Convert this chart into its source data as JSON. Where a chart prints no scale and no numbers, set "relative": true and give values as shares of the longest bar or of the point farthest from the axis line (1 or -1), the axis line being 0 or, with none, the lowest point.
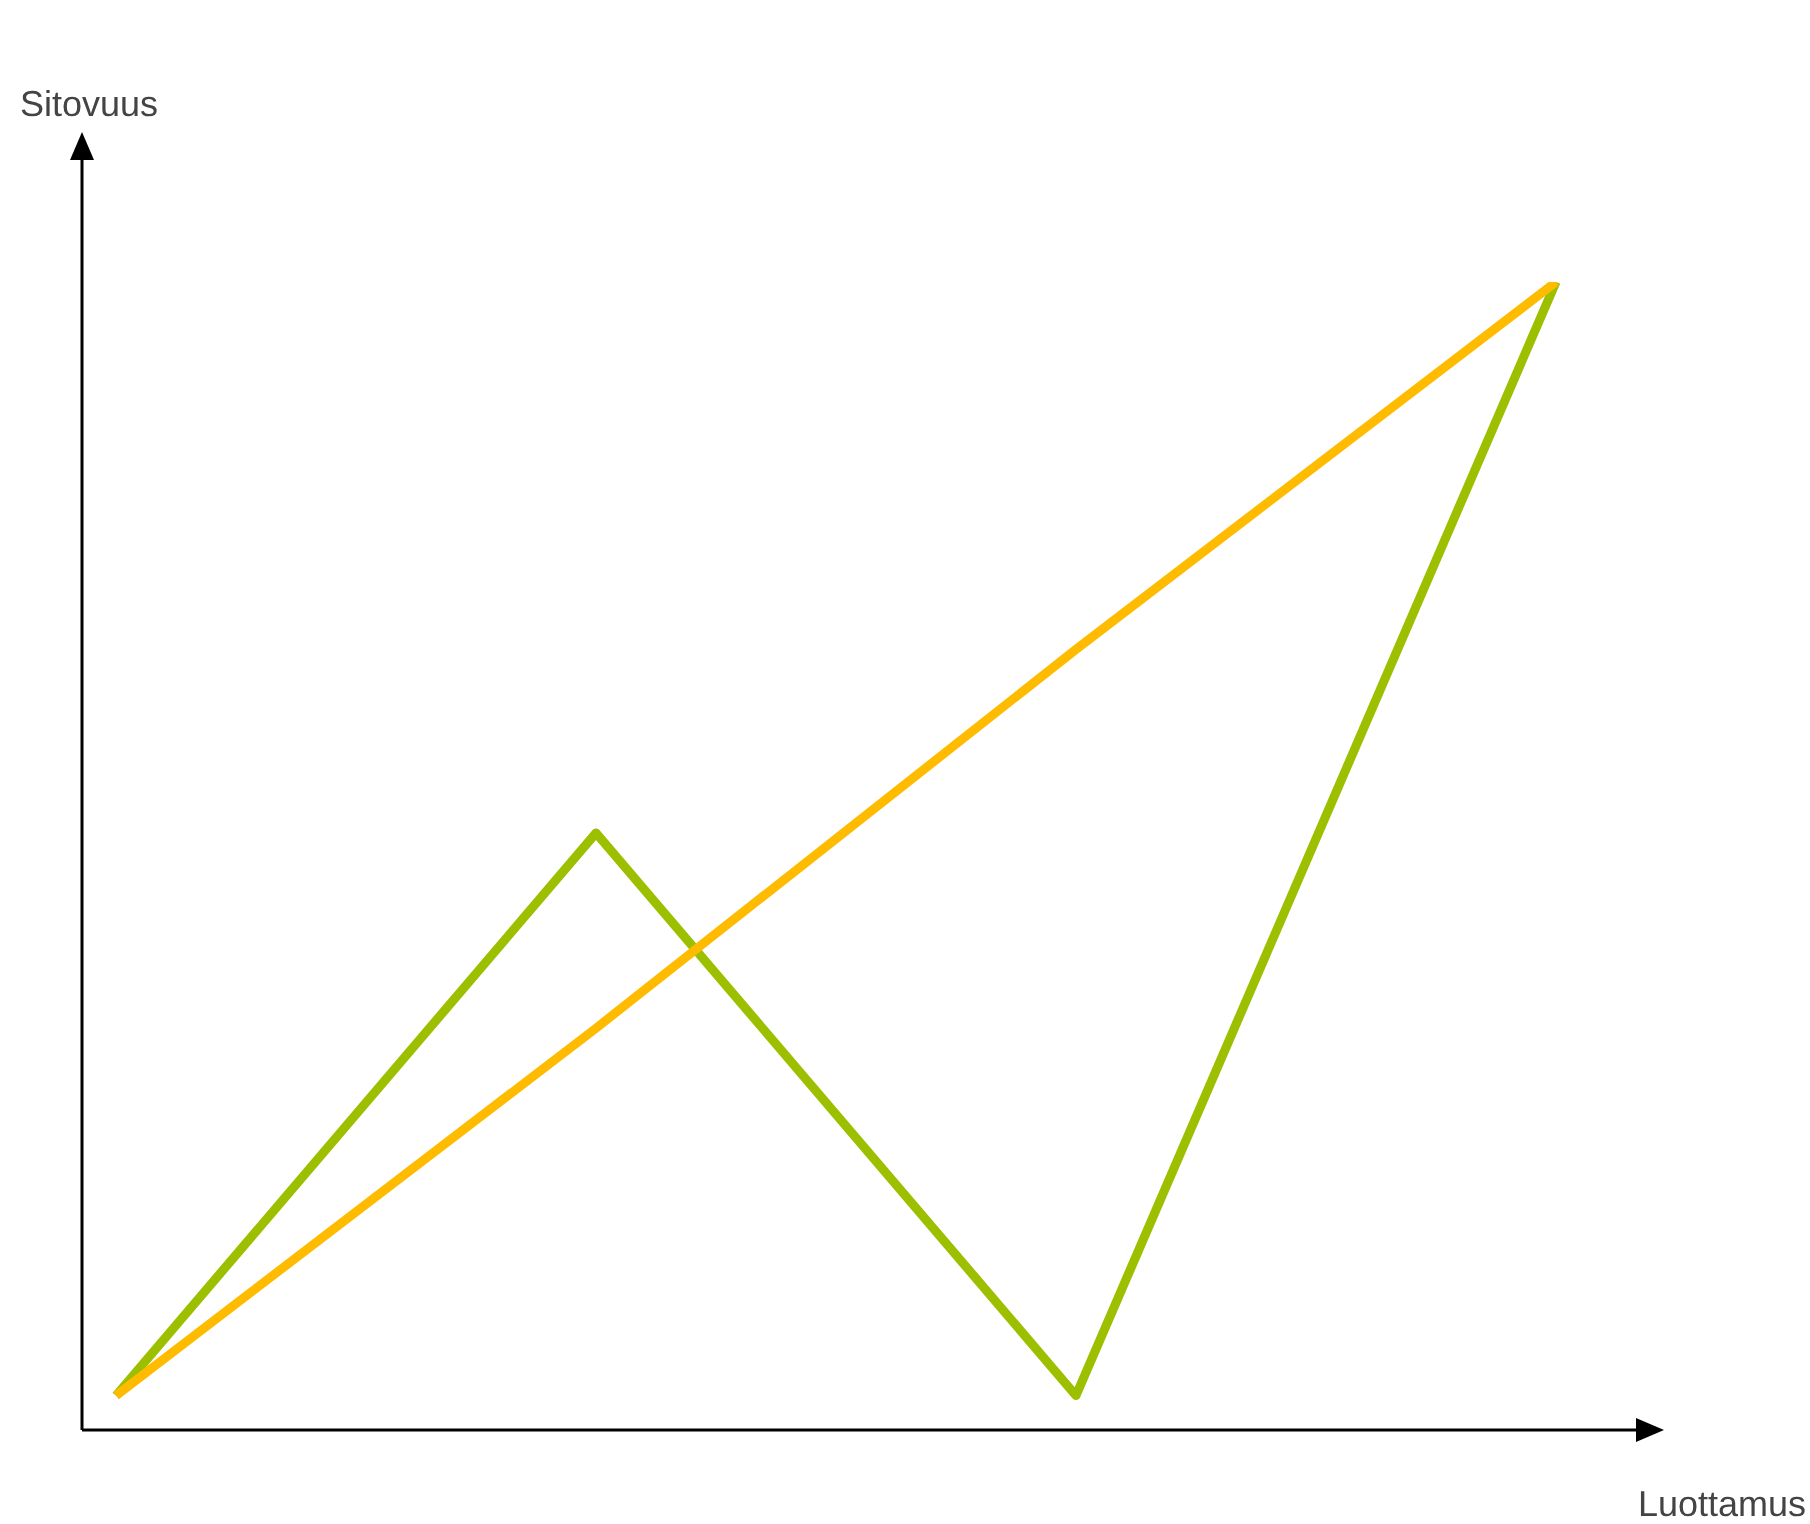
{
  "chart_data": {
    "type": "line",
    "relative": true,
    "xlabel": "Luottamus",
    "ylabel": "Sitovuus",
    "categories": [
      null,
      null,
      null,
      null
    ],
    "series": [
      {
        "color": "#ffbb00",
        "values": [
          0.03,
          0.35,
          0.68,
          1
        ]
      },
      {
        "color": "#9cbf00",
        "values": [
          0.03,
          0.52,
          0.03,
          1
        ]
      }
    ]
  }
}
